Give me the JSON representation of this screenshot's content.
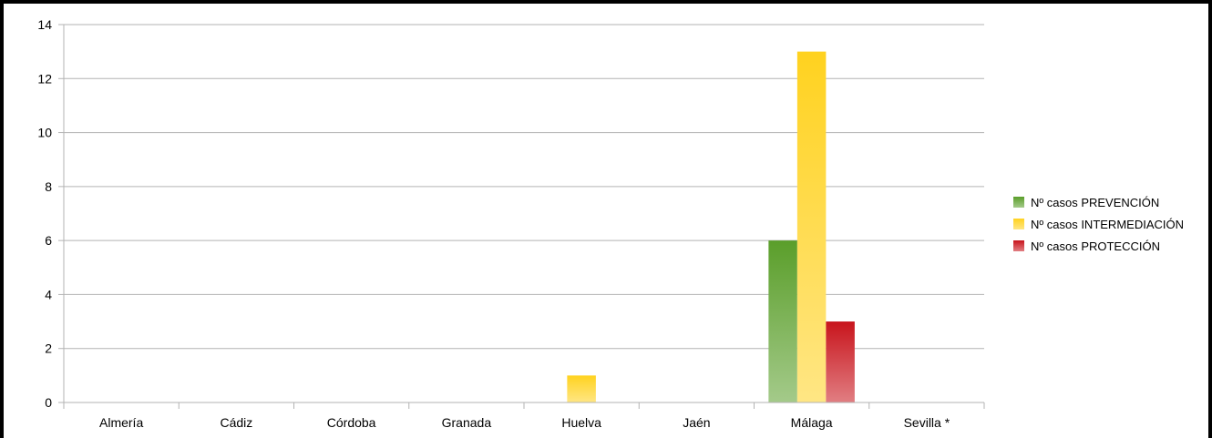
{
  "chart_data": {
    "type": "bar",
    "title": "",
    "xlabel": "",
    "ylabel": "",
    "categories": [
      "Almería",
      "Cádiz",
      "Córdoba",
      "Granada",
      "Huelva",
      "Jaén",
      "Málaga",
      "Sevilla *"
    ],
    "series": [
      {
        "name": "Nº casos PREVENCIÓN",
        "color": "#5a9e2a",
        "values": [
          0,
          0,
          0,
          0,
          0,
          0,
          6,
          0
        ]
      },
      {
        "name": "Nº casos INTERMEDIACIÓN",
        "color": "#ffd21f",
        "values": [
          0,
          0,
          0,
          0,
          1,
          0,
          13,
          0
        ]
      },
      {
        "name": "Nº casos PROTECCIÓN",
        "color": "#c8141c",
        "values": [
          0,
          0,
          0,
          0,
          0,
          0,
          3,
          0
        ]
      }
    ],
    "ylim": [
      0,
      14
    ],
    "yticks": [
      0,
      2,
      4,
      6,
      8,
      10,
      12,
      14
    ],
    "grid": true,
    "legend_position": "right"
  }
}
